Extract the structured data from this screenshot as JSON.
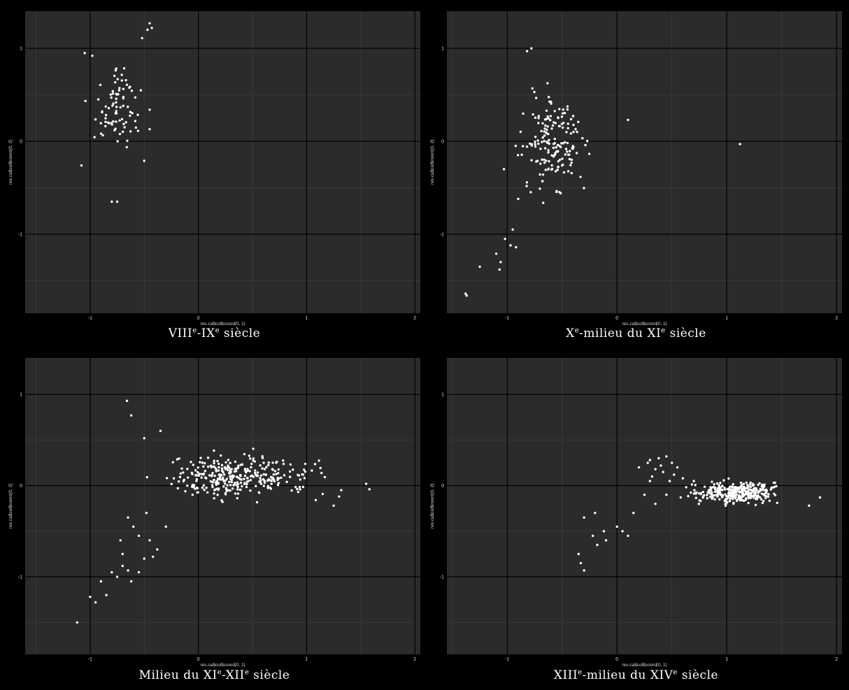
{
  "chart_data": [
    {
      "type": "scatter",
      "caption": {
        "p1": "VIII",
        "s1": "e",
        "p2": "-IX",
        "s2": "e",
        "p3": " siècle"
      },
      "xlabel": "res.ca$col$coord[0, 1]",
      "ylabel": "res.ca$col$coord[0, 2]",
      "xlim": [
        -1.6,
        2.05
      ],
      "ylim": [
        -1.85,
        1.4
      ],
      "xticks": [
        -1,
        0,
        1,
        2
      ],
      "xtick_labels": [
        "-1",
        "0",
        "1",
        "2"
      ],
      "yticks": [
        -1,
        0,
        1
      ],
      "ytick_labels": [
        "-1",
        "0",
        "1"
      ],
      "grid": true,
      "cloud": {
        "xrange": [
          -1.05,
          -0.45
        ],
        "yrange": [
          -0.3,
          0.95
        ],
        "n": 80,
        "seed": 11
      },
      "points": [
        [
          -0.45,
          1.27
        ],
        [
          -0.43,
          1.22
        ],
        [
          -0.47,
          1.2
        ],
        [
          -0.52,
          1.11
        ],
        [
          -1.05,
          0.95
        ],
        [
          -0.98,
          0.92
        ],
        [
          -1.08,
          -0.26
        ],
        [
          -0.5,
          -0.21
        ],
        [
          -0.45,
          0.34
        ],
        [
          -0.45,
          0.13
        ],
        [
          -0.8,
          -0.65
        ],
        [
          -0.75,
          -0.65
        ]
      ]
    },
    {
      "type": "scatter",
      "caption": {
        "p1": "X",
        "s1": "e",
        "p2": "-milieu du XI",
        "s2": "e",
        "p3": " siècle"
      },
      "xlabel": "res.ca$col$coord[0, 1]",
      "ylabel": "res.ca$col$coord[0, 2]",
      "xlim": [
        -1.55,
        2.05
      ],
      "ylim": [
        -1.85,
        1.4
      ],
      "xticks": [
        -1,
        0,
        1,
        2
      ],
      "xtick_labels": [
        "-1",
        "0",
        "1",
        "2"
      ],
      "yticks": [
        -1,
        0,
        1
      ],
      "ytick_labels": [
        "-1",
        "0",
        "1"
      ],
      "grid": true,
      "cloud": {
        "xrange": [
          -0.98,
          -0.2
        ],
        "yrange": [
          -0.85,
          0.85
        ],
        "n": 170,
        "seed": 23
      },
      "points": [
        [
          -1.38,
          -1.64
        ],
        [
          -1.37,
          -1.66
        ],
        [
          -1.25,
          -1.35
        ],
        [
          -1.1,
          -1.21
        ],
        [
          -1.07,
          -1.38
        ],
        [
          -1.02,
          -1.05
        ],
        [
          -0.97,
          -1.12
        ],
        [
          -0.92,
          -1.14
        ],
        [
          -0.95,
          -0.95
        ],
        [
          -0.78,
          1.0
        ],
        [
          -0.82,
          0.97
        ],
        [
          0.1,
          0.23
        ],
        [
          1.12,
          -0.03
        ],
        [
          -1.03,
          -0.3
        ],
        [
          -0.9,
          -0.62
        ],
        [
          -1.06,
          -1.3
        ]
      ]
    },
    {
      "type": "scatter",
      "caption": {
        "p1": "Milieu du XI",
        "s1": "e",
        "p2": "-XII",
        "s2": "e",
        "p3": " siècle"
      },
      "xlabel": "res.ca$col$coord[0, 1]",
      "ylabel": "res.ca$col$coord[0, 2]",
      "xlim": [
        -1.6,
        2.05
      ],
      "ylim": [
        -1.85,
        1.4
      ],
      "xticks": [
        -1,
        0,
        1,
        2
      ],
      "xtick_labels": [
        "-1",
        "0",
        "1",
        "2"
      ],
      "yticks": [
        -1,
        0,
        1
      ],
      "ytick_labels": [
        "-1",
        "0",
        "1"
      ],
      "grid": true,
      "cloud": {
        "xrange": [
          -0.6,
          1.35
        ],
        "yrange": [
          -0.25,
          0.45
        ],
        "n": 330,
        "seed": 37
      },
      "points": [
        [
          -1.12,
          -1.5
        ],
        [
          -1.0,
          -1.22
        ],
        [
          -0.95,
          -1.28
        ],
        [
          -0.9,
          -1.05
        ],
        [
          -0.85,
          -1.2
        ],
        [
          -0.8,
          -0.95
        ],
        [
          -0.75,
          -1.0
        ],
        [
          -0.7,
          -0.88
        ],
        [
          -0.65,
          -0.93
        ],
        [
          -0.62,
          -1.05
        ],
        [
          -0.66,
          0.93
        ],
        [
          -0.62,
          0.77
        ],
        [
          -0.5,
          0.52
        ],
        [
          -0.42,
          -0.78
        ],
        [
          -0.38,
          -0.7
        ],
        [
          -0.55,
          -0.55
        ],
        [
          -0.6,
          -0.45
        ],
        [
          -0.65,
          -0.35
        ],
        [
          -0.45,
          -0.6
        ],
        [
          -0.3,
          -0.45
        ],
        [
          -0.48,
          -0.3
        ],
        [
          -0.35,
          0.6
        ],
        [
          1.55,
          0.02
        ],
        [
          1.58,
          -0.04
        ],
        [
          1.3,
          -0.12
        ],
        [
          1.25,
          -0.22
        ],
        [
          1.32,
          -0.05
        ],
        [
          -0.7,
          -0.75
        ],
        [
          -0.55,
          -0.95
        ],
        [
          -0.5,
          -0.8
        ],
        [
          -0.72,
          -0.6
        ]
      ]
    },
    {
      "type": "scatter",
      "caption": {
        "p1": "XIII",
        "s1": "e",
        "p2": "-milieu du XIV",
        "s2": "e",
        "p3": " siècle"
      },
      "xlabel": "res.ca$col$coord[0, 1]",
      "ylabel": "res.ca$col$coord[0, 2]",
      "xlim": [
        -1.55,
        2.05
      ],
      "ylim": [
        -1.85,
        1.4
      ],
      "xticks": [
        -1,
        0,
        1,
        2
      ],
      "xtick_labels": [
        "-1",
        "0",
        "1",
        "2"
      ],
      "yticks": [
        -1,
        0,
        1
      ],
      "ytick_labels": [
        "-1",
        "0",
        "1"
      ],
      "grid": true,
      "cloud": {
        "xrange": [
          0.55,
          1.65
        ],
        "yrange": [
          -0.25,
          0.1
        ],
        "n": 330,
        "seed": 53
      },
      "points": [
        [
          -0.35,
          -0.75
        ],
        [
          -0.33,
          -0.85
        ],
        [
          -0.3,
          -0.93
        ],
        [
          -0.3,
          -0.35
        ],
        [
          -0.2,
          -0.3
        ],
        [
          -0.22,
          -0.55
        ],
        [
          -0.18,
          -0.65
        ],
        [
          -0.12,
          -0.5
        ],
        [
          -0.1,
          -0.6
        ],
        [
          0.0,
          -0.45
        ],
        [
          0.05,
          -0.5
        ],
        [
          0.1,
          -0.55
        ],
        [
          0.15,
          -0.3
        ],
        [
          1.85,
          -0.13
        ],
        [
          1.75,
          -0.22
        ],
        [
          0.3,
          0.28
        ],
        [
          0.38,
          0.3
        ],
        [
          0.45,
          0.32
        ],
        [
          0.5,
          0.25
        ],
        [
          0.55,
          0.2
        ],
        [
          0.35,
          0.18
        ],
        [
          0.42,
          0.15
        ],
        [
          0.3,
          0.05
        ],
        [
          0.25,
          -0.1
        ],
        [
          0.35,
          -0.2
        ],
        [
          0.45,
          -0.1
        ],
        [
          0.2,
          0.2
        ],
        [
          0.48,
          0.05
        ],
        [
          0.52,
          0.12
        ],
        [
          0.4,
          0.22
        ],
        [
          0.32,
          0.1
        ],
        [
          0.28,
          0.25
        ],
        [
          0.6,
          0.08
        ],
        [
          0.7,
          0.05
        ]
      ]
    }
  ],
  "colors": {
    "page_bg": "#000000",
    "panel_bg": "#2b2b2b",
    "grid_major": "#000000",
    "grid_minor": "#3a3a3a",
    "point": "#ffffff",
    "text": "#ffffff"
  }
}
